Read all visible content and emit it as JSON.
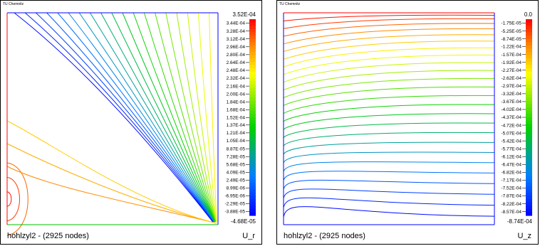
{
  "panels": [
    {
      "institution": "TU Chemnitz",
      "title": "hohlzyl2 - (2925 nodes)",
      "variable": "U_r",
      "colorbar": {
        "max_label": "3.52E-04",
        "min_label": "-4.68E-05",
        "levels": [
          "3.44E-04",
          "3.28E-04",
          "3.12E-04",
          "2.96E-04",
          "2.80E-04",
          "2.64E-04",
          "2.48E-04",
          "2.32E-04",
          "2.16E-04",
          "2.00E-04",
          "1.84E-04",
          "1.68E-04",
          "1.52E-04",
          "1.37E-04",
          "1.21E-04",
          "1.05E-04",
          "8.87E-05",
          "7.28E-05",
          "5.68E-05",
          "4.09E-05",
          "2.49E-05",
          "8.99E-06",
          "-6.95E-06",
          "-2.29E-05",
          "-3.88E-05"
        ]
      }
    },
    {
      "institution": "TU Chemnitz",
      "title": "hohlzyl2 - (2925 nodes)",
      "variable": "U_z",
      "colorbar": {
        "max_label": "0.0",
        "min_label": "-8.74E-04",
        "levels": [
          "-1.75E-05",
          "-5.25E-05",
          "-8.74E-05",
          "-1.22E-04",
          "-1.57E-04",
          "-1.92E-04",
          "-2.27E-04",
          "-2.62E-04",
          "-2.97E-04",
          "-3.32E-04",
          "-3.67E-04",
          "-4.02E-04",
          "-4.37E-04",
          "-4.72E-04",
          "-5.07E-04",
          "-5.42E-04",
          "-5.77E-04",
          "-6.12E-04",
          "-6.47E-04",
          "-6.82E-04",
          "-7.17E-04",
          "-7.52E-04",
          "-7.87E-04",
          "-8.22E-04",
          "-8.57E-04"
        ]
      }
    }
  ],
  "chart_data": [
    {
      "type": "contour",
      "variable": "U_r",
      "nodes": 2925,
      "value_range": [
        -4.68e-05,
        0.000352
      ],
      "contour_levels": [
        0.000344,
        0.000328,
        0.000312,
        0.000296,
        0.00028,
        0.000264,
        0.000248,
        0.000232,
        0.000216,
        0.0002,
        0.000184,
        0.000168,
        0.000152,
        0.000137,
        0.000121,
        0.000105,
        8.87e-05,
        7.28e-05,
        5.68e-05,
        4.09e-05,
        2.49e-05,
        8.99e-06,
        -6.95e-06,
        -2.29e-05,
        -3.88e-05
      ],
      "colormap": "blue-green-yellow-red"
    },
    {
      "type": "contour",
      "variable": "U_z",
      "nodes": 2925,
      "value_range": [
        -0.000874,
        0.0
      ],
      "contour_levels": [
        -1.75e-05,
        -5.25e-05,
        -8.74e-05,
        -0.000122,
        -0.000157,
        -0.000192,
        -0.000227,
        -0.000262,
        -0.000297,
        -0.000332,
        -0.000367,
        -0.000402,
        -0.000437,
        -0.000472,
        -0.000507,
        -0.000542,
        -0.000577,
        -0.000612,
        -0.000647,
        -0.000682,
        -0.000717,
        -0.000752,
        -0.000787,
        -0.000822,
        -0.000857
      ],
      "colormap": "blue-green-yellow-red"
    }
  ]
}
